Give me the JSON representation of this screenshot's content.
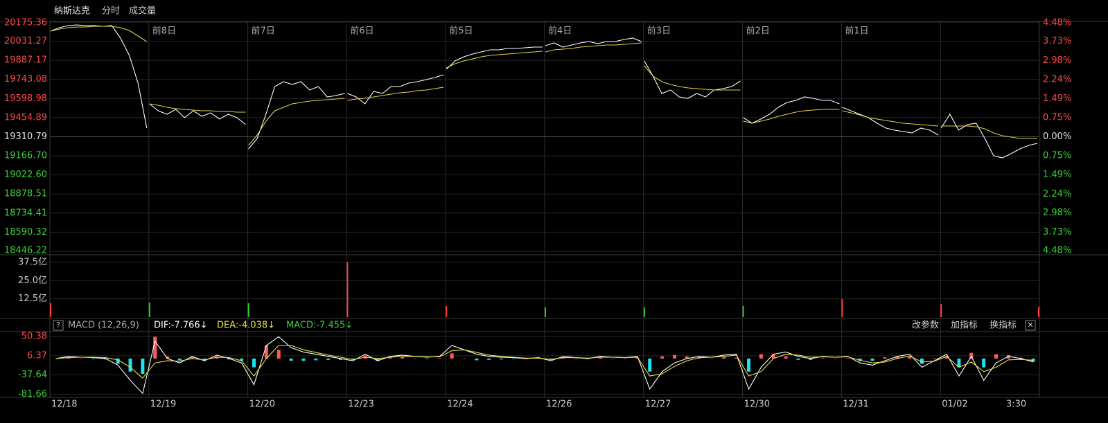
{
  "toolbar": {
    "name": "纳斯达克",
    "tabs": [
      "分时",
      "成交量"
    ]
  },
  "chart_data": [
    {
      "type": "intraday",
      "days": [
        "12/18",
        "12/19",
        "12/20",
        "12/23",
        "12/24",
        "12/26",
        "12/27",
        "12/30",
        "12/31",
        "01/02"
      ],
      "end_label": "3:30",
      "offset_labels": [
        "前8日",
        "前7日",
        "前6日",
        "前5日",
        "前4日",
        "前3日",
        "前2日",
        "前1日"
      ],
      "ylim": [
        18446.22,
        20175.36
      ],
      "yticks": [
        20175.36,
        20031.27,
        19887.17,
        19743.08,
        19598.98,
        19454.89,
        19310.79,
        {
          "value": 19166.7,
          "label": "19166.70"
        },
        {
          "value": 19022.6,
          "label": "19022.60"
        },
        18878.51,
        18734.41,
        18590.32,
        18446.22
      ],
      "y2lim": [
        -4.48,
        4.48
      ],
      "y2ticks": [
        {
          "value": 4.48,
          "label": "4.48%"
        },
        {
          "value": 3.73,
          "label": "3.73%"
        },
        {
          "value": 2.98,
          "label": "2.98%"
        },
        {
          "value": 2.24,
          "label": "2.24%"
        },
        {
          "value": 1.49,
          "label": "1.49%"
        },
        {
          "value": 0.75,
          "label": "0.75%"
        },
        {
          "value": 0,
          "label": "0.00%"
        },
        {
          "value": -0.75,
          "label": "0.75%"
        },
        {
          "value": -1.49,
          "label": "1.49%"
        },
        {
          "value": -2.24,
          "label": "2.24%"
        },
        {
          "value": -2.98,
          "label": "2.98%"
        },
        {
          "value": -3.73,
          "label": "3.73%"
        },
        {
          "value": -4.48,
          "label": "4.48%"
        }
      ],
      "up_color": "#ff4a4a",
      "down_color": "#3ad13a",
      "flat_color": "#e0e0e0",
      "series": [
        {
          "color": "#ffffff",
          "values": [
            20107.4,
            20133.6,
            20149.2,
            20154.5,
            20149.2,
            20149.2,
            20144.0,
            20149.2,
            20055.2,
            19924.6,
            19715.7,
            19376.1,
            19558.9,
            19506.7,
            19480.6,
            19517.1,
            19454.5,
            19506.7,
            19464.9,
            19491.0,
            19444.0,
            19480.6,
            19454.5,
            19402.2,
            19219.4,
            19297.7,
            19480.6,
            19689.5,
            19726.1,
            19705.2,
            19726.1,
            19663.4,
            19689.5,
            19611.2,
            19621.6,
            19637.3,
            19637.3,
            19611.2,
            19558.9,
            19653.0,
            19637.3,
            19689.5,
            19689.5,
            19715.7,
            19726.1,
            19741.8,
            19757.4,
            19778.3,
            19820.1,
            19882.8,
            19914.2,
            19935.1,
            19950.7,
            19966.4,
            19966.4,
            19976.8,
            19976.8,
            19982.1,
            19987.3,
            19987.3,
            19997.7,
            20018.6,
            19987.3,
            20003.0,
            20018.6,
            20029.1,
            20013.4,
            20029.1,
            20029.1,
            20044.8,
            20055.2,
            20029.1,
            19882.8,
            19767.9,
            19637.3,
            19663.4,
            19611.2,
            19600.7,
            19637.3,
            19611.2,
            19663.4,
            19673.9,
            19689.5,
            19731.3,
            19454.5,
            19412.7,
            19444.0,
            19480.6,
            19532.8,
            19569.4,
            19585.0,
            19611.2,
            19600.7,
            19585.0,
            19585.0,
            19558.9,
            19532.8,
            19506.7,
            19480.6,
            19454.5,
            19412.7,
            19376.1,
            19360.4,
            19350.0,
            19339.5,
            19376.1,
            19360.4,
            19323.9,
            19376.1,
            19480.6,
            19360.4,
            19402.2,
            19412.7,
            19297.7,
            19167.2,
            19151.5,
            19182.8,
            19219.4,
            19245.5,
            19261.2
          ]
        },
        {
          "color": "#e2d24a",
          "values": [
            20107.4,
            20123.1,
            20133.6,
            20138.8,
            20138.8,
            20144.0,
            20144.0,
            20144.0,
            20133.6,
            20112.7,
            20070.9,
            20029.1,
            19558.9,
            19548.5,
            19532.8,
            19522.4,
            19517.1,
            19512.0,
            19506.7,
            19506.7,
            19501.5,
            19501.5,
            19496.3,
            19496.3,
            19245.5,
            19323.9,
            19428.3,
            19506.7,
            19532.8,
            19558.9,
            19569.4,
            19579.8,
            19585.0,
            19590.3,
            19595.5,
            19600.7,
            19585.0,
            19595.5,
            19600.7,
            19611.2,
            19621.6,
            19632.1,
            19642.5,
            19647.7,
            19658.2,
            19663.4,
            19673.9,
            19684.3,
            19830.6,
            19861.9,
            19882.8,
            19898.5,
            19914.2,
            19924.6,
            19929.8,
            19935.1,
            19940.3,
            19945.5,
            19950.7,
            19955.9,
            19950.7,
            19966.4,
            19971.6,
            19976.8,
            19987.3,
            19992.5,
            19997.7,
            20003.0,
            20003.0,
            20008.2,
            20013.4,
            20018.6,
            19846.2,
            19767.9,
            19726.1,
            19705.2,
            19689.5,
            19679.1,
            19673.9,
            19668.6,
            19663.4,
            19663.4,
            19663.4,
            19663.4,
            19428.3,
            19412.7,
            19428.3,
            19444.0,
            19464.9,
            19480.6,
            19496.3,
            19506.7,
            19512.0,
            19517.1,
            19517.1,
            19517.1,
            19506.7,
            19491.0,
            19475.4,
            19454.5,
            19444.0,
            19433.6,
            19423.1,
            19412.7,
            19407.4,
            19402.2,
            19397.0,
            19391.8,
            19391.8,
            19391.8,
            19391.8,
            19391.8,
            19386.5,
            19370.9,
            19339.5,
            19318.6,
            19308.2,
            19297.7,
            19297.7,
            19297.7
          ]
        }
      ]
    },
    {
      "type": "volume",
      "ylim": [
        0,
        40.8
      ],
      "yticks": [
        {
          "value": 37.5,
          "label": "37.5亿"
        },
        {
          "value": 25.0,
          "label": "25.0亿"
        },
        {
          "value": 12.5,
          "label": "12.5亿"
        }
      ],
      "values": [
        9.5,
        10.0,
        9.5,
        37.5,
        7.6,
        6.6,
        6.6,
        7.6,
        12.3,
        9.0,
        7.1
      ],
      "colors": [
        "#ff4040",
        "#2bd12b",
        "#2bd12b",
        "#ff4040",
        "#ff4040",
        "#2bd12b",
        "#2bd12b",
        "#2bd12b",
        "#ff4040",
        "#ff4040",
        "#ff4040"
      ]
    },
    {
      "type": "macd",
      "help": "?",
      "title": "MACD (12,26,9)",
      "legend": [
        {
          "text": "DIF:-7.766↓",
          "color": "#ffffff"
        },
        {
          "text": "DEA:-4.038↓",
          "color": "#e8e04a"
        },
        {
          "text": "MACD:-7.455↓",
          "color": "#3ad13a"
        }
      ],
      "buttons": [
        "改参数",
        "加指标",
        "换指标"
      ],
      "close": "✕",
      "ylim": [
        -87.5,
        60.2
      ],
      "yticks": [
        50.38,
        6.37,
        -37.64,
        -81.66
      ],
      "up_color": "#ff5a5a",
      "down_color": "#22e0ee",
      "series": [
        {
          "color": "#ffffff",
          "values": [
            0,
            5,
            3,
            2,
            0,
            -15,
            -50,
            -80,
            40,
            0,
            -10,
            5,
            -5,
            8,
            0,
            -10,
            -60,
            30,
            50,
            25,
            15,
            10,
            5,
            0,
            -5,
            10,
            -5,
            5,
            8,
            5,
            3,
            5,
            30,
            20,
            10,
            5,
            3,
            2,
            0,
            2,
            -5,
            5,
            2,
            0,
            5,
            3,
            2,
            5,
            -70,
            -30,
            -10,
            0,
            5,
            3,
            8,
            10,
            -70,
            -20,
            10,
            15,
            5,
            0,
            5,
            3,
            5,
            -10,
            -15,
            -5,
            5,
            10,
            -20,
            -5,
            10,
            -40,
            5,
            -50,
            -10,
            5,
            0,
            -7.766
          ]
        },
        {
          "color": "#e8e04a",
          "values": [
            0,
            2,
            3,
            3,
            2,
            -3,
            -20,
            -45,
            -10,
            -5,
            -6,
            0,
            -3,
            3,
            2,
            -5,
            -40,
            0,
            30,
            30,
            20,
            14,
            8,
            3,
            -2,
            3,
            0,
            3,
            5,
            5,
            4,
            4,
            18,
            20,
            14,
            8,
            5,
            3,
            1,
            1,
            -2,
            2,
            2,
            1,
            3,
            3,
            2,
            3,
            -40,
            -35,
            -18,
            -5,
            2,
            3,
            5,
            8,
            -40,
            -30,
            0,
            10,
            8,
            3,
            4,
            3,
            4,
            -4,
            -10,
            -8,
            0,
            6,
            -8,
            -6,
            5,
            -20,
            -8,
            -30,
            -20,
            -3,
            -2,
            -4.038
          ]
        }
      ],
      "histogram": [
        0,
        3,
        0,
        -1,
        -2,
        -12,
        -30,
        -35,
        50,
        5,
        -4,
        5,
        -2,
        5,
        -2,
        -5,
        -20,
        30,
        20,
        -5,
        -5,
        -4,
        -3,
        -3,
        -3,
        7,
        -5,
        2,
        3,
        0,
        -1,
        1,
        12,
        0,
        -4,
        -3,
        -2,
        -1,
        -1,
        1,
        -3,
        3,
        0,
        -1,
        2,
        0,
        0,
        2,
        -30,
        5,
        8,
        5,
        3,
        0,
        3,
        2,
        -30,
        10,
        10,
        5,
        -3,
        -3,
        1,
        0,
        1,
        -6,
        -5,
        3,
        5,
        4,
        -12,
        1,
        5,
        -20,
        13,
        -20,
        10,
        8,
        2,
        -7.455
      ]
    }
  ]
}
